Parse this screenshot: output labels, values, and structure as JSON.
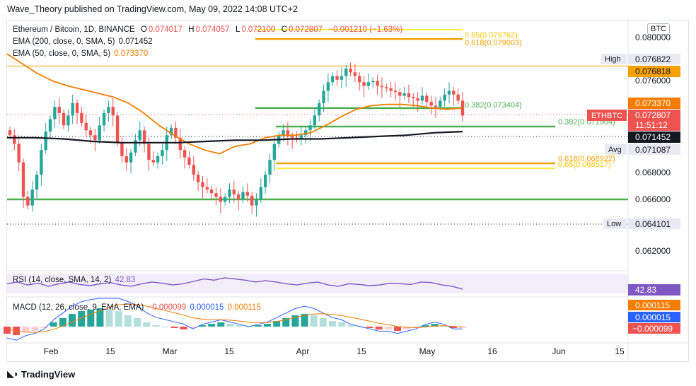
{
  "header": {
    "published": "Wave_Theory published on TradingView.com, May 09, 2022 14:08 UTC+2"
  },
  "legend": {
    "symbol": "Ethereum / Bitcoin, 1D, BINANCE",
    "o_label": "O",
    "o_value": "0.074017",
    "h_label": "H",
    "h_value": "0.074057",
    "l_label": "L",
    "l_value": "0.072100",
    "c_label": "C",
    "c_value": "0.072807",
    "change": "−0.001210 (−1.63%)",
    "ema200_label": "EMA (200, close, 0, SMA, 5)",
    "ema200_value": "0.071452",
    "ema50_label": "EMA (50, close, 0, SMA, 5)",
    "ema50_value": "0.073370"
  },
  "rsi_legend": {
    "label": "RSI (14, close, SMA, 14, 2)",
    "value": "42.83"
  },
  "macd_legend": {
    "label": "MACD (12, 26, close, 9, EMA, EMA)",
    "hist": "−0.000099",
    "macd": "0.000015",
    "signal": "0.000115"
  },
  "currency_button": "BTC",
  "branding": {
    "name": "TradingView",
    "icon": "tradingview-logo-icon"
  },
  "colors": {
    "up": "#26a69a",
    "down": "#ef5350",
    "ema50": "#f57c00",
    "ema200": "#131722",
    "fib_green": "#4caf50",
    "fib_orange": "#f5a100",
    "fib_yellow": "#ffeb3b",
    "rsi": "#7e57c2",
    "macd_line": "#2962ff",
    "signal_line": "#f57c00"
  },
  "chart_data": {
    "type": "line",
    "title": "Ethereum / Bitcoin, 1D, BINANCE",
    "y_range": [
      0.0605,
      0.0805
    ],
    "y_ticks": [
      "0.080000",
      "0.076000",
      "0.068000",
      "0.066000",
      "0.062000"
    ],
    "x_ticks": [
      "Feb",
      "15",
      "Mar",
      "15",
      "Apr",
      "15",
      "May",
      "16",
      "Jun",
      "15"
    ],
    "price_labels": [
      {
        "name": "High",
        "value": "0.076822"
      },
      {
        "name": "",
        "value": "0.076818"
      },
      {
        "name": "",
        "value": "0.073370"
      },
      {
        "name": "ETHBTC",
        "value": "0.072807"
      },
      {
        "name": "",
        "value": "11:51:12"
      },
      {
        "name": "",
        "value": "0.071452"
      },
      {
        "name": "Avg",
        "value": "0.071087"
      },
      {
        "name": "Low",
        "value": "0.064101"
      }
    ],
    "fib_labels": [
      {
        "text": "0.65(0.079762)",
        "value": 0.079762
      },
      {
        "text": "0.618(0.079003)",
        "value": 0.079003
      },
      {
        "text": "0.382(0.073404)",
        "value": 0.073404
      },
      {
        "text": "0.382(0.071904)",
        "value": 0.071904
      },
      {
        "text": "0.618(0.068922)",
        "value": 0.068922
      },
      {
        "text": "0.65(0.068517)",
        "value": 0.068517
      }
    ],
    "horizontal_levels": [
      0.07681,
      0.0718,
      0.066
    ],
    "close_series": [
      0.0712,
      0.0705,
      0.069,
      0.0662,
      0.0655,
      0.0668,
      0.068,
      0.07,
      0.0715,
      0.0725,
      0.0735,
      0.073,
      0.072,
      0.0728,
      0.0738,
      0.073,
      0.0722,
      0.0716,
      0.0712,
      0.0708,
      0.072,
      0.073,
      0.0735,
      0.0728,
      0.0706,
      0.0695,
      0.069,
      0.0698,
      0.0708,
      0.0716,
      0.0705,
      0.0692,
      0.069,
      0.0695,
      0.07,
      0.0712,
      0.0718,
      0.071,
      0.07,
      0.0694,
      0.0688,
      0.068,
      0.0674,
      0.067,
      0.0668,
      0.0665,
      0.0662,
      0.0658,
      0.0662,
      0.0668,
      0.0664,
      0.066,
      0.0666,
      0.0663,
      0.0655,
      0.066,
      0.067,
      0.068,
      0.0692,
      0.0705,
      0.0712,
      0.0716,
      0.0711,
      0.071,
      0.0709,
      0.0712,
      0.0716,
      0.072,
      0.0728,
      0.0738,
      0.0748,
      0.0755,
      0.076,
      0.0757,
      0.076,
      0.0766,
      0.0763,
      0.076,
      0.0755,
      0.0752,
      0.0755,
      0.0756,
      0.0752,
      0.0751,
      0.075,
      0.0748,
      0.0747,
      0.0744,
      0.0746,
      0.0743,
      0.0742,
      0.074,
      0.0744,
      0.0739,
      0.0736,
      0.0735,
      0.074,
      0.0745,
      0.0748,
      0.0745,
      0.074,
      0.0728
    ],
    "ema50_series": [
      0.0778,
      0.077,
      0.0762,
      0.0756,
      0.0752,
      0.0749,
      0.0746,
      0.0743,
      0.0738,
      0.073,
      0.072,
      0.0712,
      0.0705,
      0.07,
      0.0697,
      0.0703,
      0.0705,
      0.071,
      0.0712,
      0.0712,
      0.0714,
      0.072,
      0.0727,
      0.0733,
      0.0736,
      0.0737,
      0.0737,
      0.0736,
      0.0734,
      0.0733,
      0.0734
    ],
    "ema200_series": [
      0.071,
      0.071,
      0.0709,
      0.0707,
      0.0706,
      0.0706,
      0.0706,
      0.0707,
      0.0708,
      0.0708,
      0.0709,
      0.0709,
      0.071,
      0.0711,
      0.0712,
      0.0714,
      0.0715
    ],
    "rsi_series": [
      52,
      55,
      50,
      53,
      48,
      52,
      55,
      51,
      49,
      52,
      54,
      50,
      48,
      52,
      55,
      53,
      50,
      52,
      56,
      60,
      58,
      62,
      60,
      58,
      55,
      57,
      55,
      52,
      50,
      53,
      55,
      50,
      48,
      52,
      51,
      49,
      50,
      53,
      52,
      51,
      55,
      54,
      50,
      48,
      43
    ],
    "macd_hist": [
      -0.0005,
      -0.0006,
      -0.0004,
      -0.0003,
      -0.0001,
      0.0003,
      0.0006,
      0.0009,
      0.0011,
      0.0012,
      0.0013,
      0.0012,
      0.0011,
      0.0008,
      0.0006,
      0.0003,
      0.0001,
      0.0,
      -0.0001,
      -0.0002,
      -0.0001,
      0.0001,
      0.0002,
      0.0003,
      0.0002,
      0.0001,
      0.0,
      0.0001,
      0.0002,
      0.0004,
      0.0006,
      0.0008,
      0.0009,
      0.0008,
      0.0006,
      0.0004,
      0.0003,
      0.0001,
      0.0,
      -0.0001,
      -0.0002,
      -0.0002,
      -0.0003,
      -0.0002,
      -0.0001,
      0.0001,
      0.0002,
      0.0001,
      -0.0001,
      -0.0001
    ]
  }
}
